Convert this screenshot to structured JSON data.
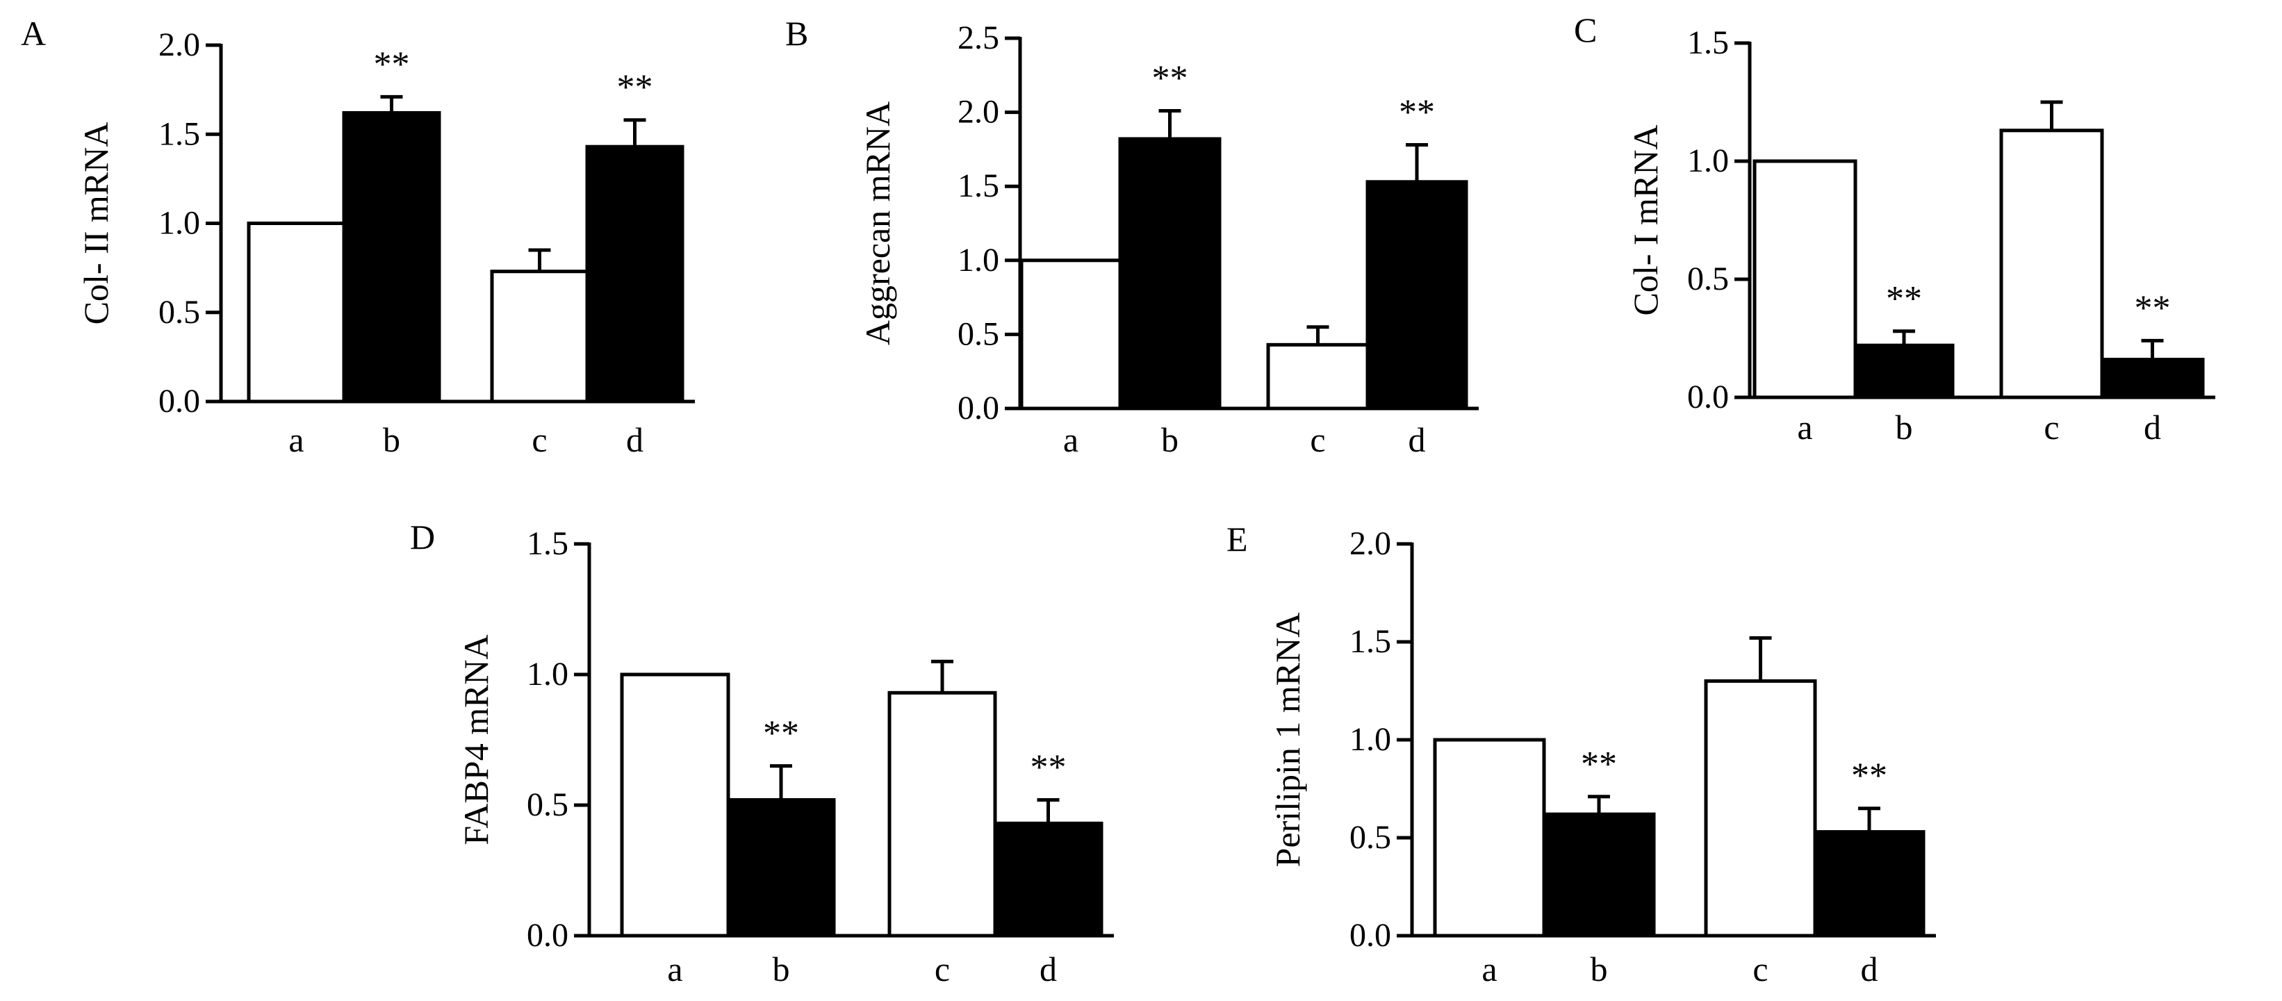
{
  "chart_data": [
    {
      "panel": "A",
      "type": "bar",
      "categories": [
        "a",
        "b",
        "c",
        "d"
      ],
      "values": [
        1.0,
        1.62,
        0.73,
        1.43
      ],
      "errors": [
        0,
        0.09,
        0.12,
        0.15
      ],
      "fills": [
        "white",
        "black",
        "white",
        "black"
      ],
      "annotations": [
        "",
        "**",
        "",
        "**"
      ],
      "ylabel": "Col- II  mRNA",
      "ylim": [
        0,
        2.0
      ],
      "yticks": [
        "0.0",
        "0.5",
        "1.0",
        "1.5",
        "2.0"
      ],
      "ytick_values": [
        0,
        0.5,
        1.0,
        1.5,
        2.0
      ]
    },
    {
      "panel": "B",
      "type": "bar",
      "categories": [
        "a",
        "b",
        "c",
        "d"
      ],
      "values": [
        1.0,
        1.82,
        0.43,
        1.53
      ],
      "errors": [
        0,
        0.19,
        0.12,
        0.25
      ],
      "fills": [
        "white",
        "black",
        "white",
        "black"
      ],
      "annotations": [
        "",
        "**",
        "",
        "**"
      ],
      "ylabel": "Aggrecan mRNA",
      "ylim": [
        0,
        2.5
      ],
      "yticks": [
        "0.0",
        "0.5",
        "1.0",
        "1.5",
        "2.0",
        "2.5"
      ],
      "ytick_values": [
        0,
        0.5,
        1.0,
        1.5,
        2.0,
        2.5
      ]
    },
    {
      "panel": "C",
      "type": "bar",
      "categories": [
        "a",
        "b",
        "c",
        "d"
      ],
      "values": [
        1.0,
        0.22,
        1.13,
        0.16
      ],
      "errors": [
        0,
        0.06,
        0.12,
        0.08
      ],
      "fills": [
        "white",
        "black",
        "white",
        "black"
      ],
      "annotations": [
        "",
        "**",
        "",
        "**"
      ],
      "ylabel": "Col- I  mRNA",
      "ylim": [
        0,
        1.5
      ],
      "yticks": [
        "0.0",
        "0.5",
        "1.0",
        "1.5"
      ],
      "ytick_values": [
        0,
        0.5,
        1.0,
        1.5
      ]
    },
    {
      "panel": "D",
      "type": "bar",
      "categories": [
        "a",
        "b",
        "c",
        "d"
      ],
      "values": [
        1.0,
        0.52,
        0.93,
        0.43
      ],
      "errors": [
        0,
        0.13,
        0.12,
        0.09
      ],
      "fills": [
        "white",
        "black",
        "white",
        "black"
      ],
      "annotations": [
        "",
        "**",
        "",
        "**"
      ],
      "ylabel": "FABP4 mRNA",
      "ylim": [
        0,
        1.5
      ],
      "yticks": [
        "0.0",
        "0.5",
        "1.0",
        "1.5"
      ],
      "ytick_values": [
        0,
        0.5,
        1.0,
        1.5
      ]
    },
    {
      "panel": "E",
      "type": "bar",
      "categories": [
        "a",
        "b",
        "c",
        "d"
      ],
      "values": [
        1.0,
        0.62,
        1.3,
        0.53
      ],
      "errors": [
        0,
        0.09,
        0.22,
        0.12
      ],
      "fills": [
        "white",
        "black",
        "white",
        "black"
      ],
      "annotations": [
        "",
        "**",
        "",
        "**"
      ],
      "ylabel": "Perilipin 1  mRNA",
      "ylim": [
        0,
        2.0
      ],
      "yticks": [
        "0.0",
        "0.5",
        "1.0",
        "1.5",
        "2.0"
      ],
      "ytick_values": [
        0,
        0.5,
        1.0,
        1.5,
        2.0
      ]
    }
  ]
}
